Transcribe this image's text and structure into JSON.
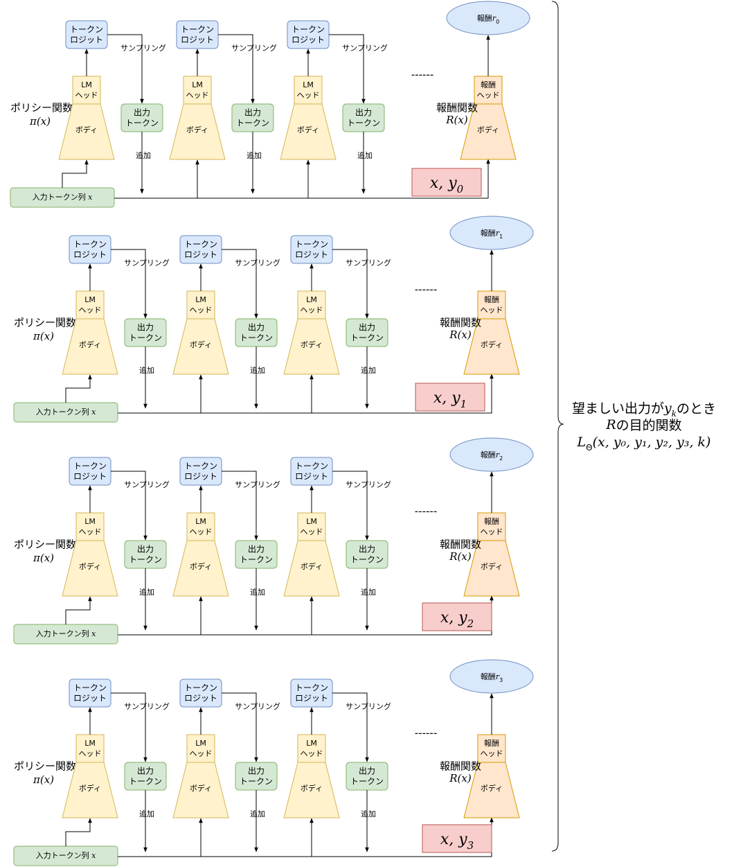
{
  "labels": {
    "token_logit": [
      "トークン",
      "ロジット"
    ],
    "sampling": "サンプリング",
    "lm_head": [
      "LM",
      "ヘッド"
    ],
    "body": "ボディ",
    "output_token": [
      "出力",
      "トークン"
    ],
    "append": "追加",
    "policy_fn": "ポリシー関数",
    "policy_math": "π(x)",
    "reward_fn": "報酬関数",
    "reward_math": "R(x)",
    "reward_head": [
      "報酬",
      "ヘッド"
    ],
    "input_seq": "入力トークン列",
    "input_var": "x",
    "reward_prefix": "報酬",
    "reward_var": "r",
    "dashes": "------",
    "brace_line1_a": "望ましい出力が",
    "brace_line1_var": "y",
    "brace_line1_sub": "k",
    "brace_line1_b": "のとき",
    "brace_line2_var": "R",
    "brace_line2_b": "の目的関数",
    "brace_line3_L": "L",
    "brace_line3_sub": "Θ",
    "brace_line3_args": "(x, y₀, y₁, y₂, y₃, k)"
  },
  "rows": [
    {
      "pair_x": "x, y",
      "pair_sub": "0",
      "reward_sub": "0"
    },
    {
      "pair_x": "x, y",
      "pair_sub": "1",
      "reward_sub": "1"
    },
    {
      "pair_x": "x, y",
      "pair_sub": "2",
      "reward_sub": "2"
    },
    {
      "pair_x": "x, y",
      "pair_sub": "3",
      "reward_sub": "3"
    }
  ],
  "colors": {
    "logit_fill": "#dae8fc",
    "logit_stroke": "#6c8ebf",
    "output_fill": "#d5e8d4",
    "output_stroke": "#82b366",
    "model_fill": "#fff2cc",
    "model_stroke": "#d6b656",
    "reward_model_fill": "#ffe6cc",
    "reward_model_stroke": "#d79b00",
    "pair_fill": "#f8cecc",
    "pair_stroke": "#b85450"
  }
}
